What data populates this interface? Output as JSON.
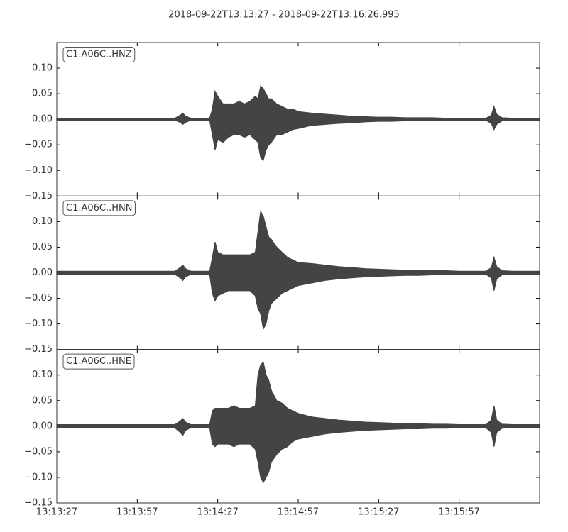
{
  "chart_data": {
    "type": "area",
    "title": "2018-09-22T13:13:27  -  2018-09-22T13:16:26.995",
    "xlim": [
      0,
      180
    ],
    "xticks": [
      {
        "value": 0,
        "label": "13:13:27"
      },
      {
        "value": 30,
        "label": "13:13:57"
      },
      {
        "value": 60,
        "label": "13:14:27"
      },
      {
        "value": 90,
        "label": "13:14:57"
      },
      {
        "value": 120,
        "label": "13:15:27"
      },
      {
        "value": 150,
        "label": "13:15:57"
      }
    ],
    "x": [
      0,
      5,
      10,
      15,
      20,
      25,
      30,
      35,
      40,
      44,
      46,
      47,
      48,
      50,
      54,
      57,
      58,
      59,
      60,
      62,
      64,
      66,
      68,
      70,
      72,
      74,
      75,
      76,
      77,
      78,
      79,
      80,
      82,
      84,
      86,
      88,
      90,
      95,
      100,
      105,
      110,
      115,
      120,
      125,
      130,
      135,
      140,
      145,
      150,
      155,
      160,
      162,
      163,
      164,
      166,
      170,
      175,
      180
    ],
    "panels": [
      {
        "label": "C1.A06C..HNZ",
        "color": "#444444",
        "ylim": [
          -0.15,
          0.15
        ],
        "yticks": [
          {
            "value": -0.15,
            "label": "−0.15"
          },
          {
            "value": -0.1,
            "label": "−0.10"
          },
          {
            "value": -0.05,
            "label": "−0.05"
          },
          {
            "value": 0,
            "label": "0.00"
          },
          {
            "value": 0.05,
            "label": "0.05"
          },
          {
            "value": 0.1,
            "label": "0.10"
          }
        ],
        "upper": [
          0.002,
          0.002,
          0.002,
          0.002,
          0.002,
          0.002,
          0.002,
          0.002,
          0.002,
          0.002,
          0.008,
          0.012,
          0.006,
          0.002,
          0.002,
          0.002,
          0.02,
          0.055,
          0.045,
          0.03,
          0.03,
          0.03,
          0.035,
          0.03,
          0.035,
          0.045,
          0.04,
          0.065,
          0.06,
          0.05,
          0.04,
          0.04,
          0.03,
          0.025,
          0.02,
          0.02,
          0.015,
          0.012,
          0.01,
          0.008,
          0.006,
          0.005,
          0.004,
          0.004,
          0.003,
          0.003,
          0.003,
          0.002,
          0.002,
          0.002,
          0.002,
          0.008,
          0.025,
          0.01,
          0.003,
          0.002,
          0.002,
          0.002
        ],
        "lower": [
          -0.002,
          -0.002,
          -0.002,
          -0.002,
          -0.002,
          -0.002,
          -0.002,
          -0.002,
          -0.002,
          -0.002,
          -0.006,
          -0.01,
          -0.006,
          -0.002,
          -0.002,
          -0.002,
          -0.03,
          -0.06,
          -0.04,
          -0.045,
          -0.035,
          -0.03,
          -0.03,
          -0.035,
          -0.03,
          -0.04,
          -0.045,
          -0.075,
          -0.08,
          -0.06,
          -0.05,
          -0.045,
          -0.03,
          -0.03,
          -0.025,
          -0.02,
          -0.018,
          -0.012,
          -0.01,
          -0.008,
          -0.007,
          -0.005,
          -0.004,
          -0.004,
          -0.003,
          -0.003,
          -0.003,
          -0.002,
          -0.002,
          -0.002,
          -0.002,
          -0.008,
          -0.02,
          -0.01,
          -0.003,
          -0.002,
          -0.002,
          -0.002
        ]
      },
      {
        "label": "C1.A06C..HNN",
        "color": "#444444",
        "ylim": [
          -0.15,
          0.15
        ],
        "yticks": [
          {
            "value": -0.15,
            "label": "−0.15"
          },
          {
            "value": -0.1,
            "label": "−0.10"
          },
          {
            "value": -0.05,
            "label": "−0.05"
          },
          {
            "value": 0,
            "label": "0.00"
          },
          {
            "value": 0.05,
            "label": "0.05"
          },
          {
            "value": 0.1,
            "label": "0.10"
          }
        ],
        "upper": [
          0.003,
          0.003,
          0.003,
          0.003,
          0.003,
          0.003,
          0.003,
          0.003,
          0.003,
          0.003,
          0.01,
          0.015,
          0.008,
          0.003,
          0.003,
          0.003,
          0.03,
          0.06,
          0.04,
          0.035,
          0.035,
          0.035,
          0.035,
          0.035,
          0.035,
          0.04,
          0.08,
          0.12,
          0.11,
          0.09,
          0.07,
          0.065,
          0.05,
          0.04,
          0.03,
          0.025,
          0.02,
          0.018,
          0.015,
          0.012,
          0.01,
          0.008,
          0.007,
          0.006,
          0.005,
          0.005,
          0.004,
          0.004,
          0.003,
          0.003,
          0.003,
          0.01,
          0.03,
          0.012,
          0.004,
          0.003,
          0.003,
          0.003
        ],
        "lower": [
          -0.003,
          -0.003,
          -0.003,
          -0.003,
          -0.003,
          -0.003,
          -0.003,
          -0.003,
          -0.003,
          -0.003,
          -0.01,
          -0.015,
          -0.008,
          -0.003,
          -0.003,
          -0.003,
          -0.04,
          -0.055,
          -0.045,
          -0.04,
          -0.035,
          -0.035,
          -0.035,
          -0.035,
          -0.035,
          -0.045,
          -0.07,
          -0.08,
          -0.11,
          -0.1,
          -0.075,
          -0.06,
          -0.05,
          -0.04,
          -0.035,
          -0.03,
          -0.025,
          -0.02,
          -0.015,
          -0.012,
          -0.01,
          -0.008,
          -0.007,
          -0.006,
          -0.005,
          -0.005,
          -0.004,
          -0.004,
          -0.003,
          -0.003,
          -0.003,
          -0.01,
          -0.035,
          -0.012,
          -0.004,
          -0.003,
          -0.003,
          -0.003
        ]
      },
      {
        "label": "C1.A06C..HNE",
        "color": "#444444",
        "ylim": [
          -0.15,
          0.15
        ],
        "yticks": [
          {
            "value": -0.15,
            "label": "−0.15"
          },
          {
            "value": -0.1,
            "label": "−0.10"
          },
          {
            "value": -0.05,
            "label": "−0.05"
          },
          {
            "value": 0,
            "label": "0.00"
          },
          {
            "value": 0.05,
            "label": "0.05"
          },
          {
            "value": 0.1,
            "label": "0.10"
          }
        ],
        "upper": [
          0.003,
          0.003,
          0.003,
          0.003,
          0.003,
          0.003,
          0.003,
          0.003,
          0.003,
          0.003,
          0.01,
          0.015,
          0.008,
          0.003,
          0.003,
          0.003,
          0.03,
          0.035,
          0.035,
          0.035,
          0.035,
          0.04,
          0.035,
          0.035,
          0.035,
          0.04,
          0.1,
          0.12,
          0.125,
          0.1,
          0.09,
          0.07,
          0.05,
          0.045,
          0.035,
          0.03,
          0.025,
          0.018,
          0.015,
          0.012,
          0.01,
          0.008,
          0.007,
          0.006,
          0.005,
          0.005,
          0.004,
          0.004,
          0.003,
          0.003,
          0.003,
          0.012,
          0.04,
          0.012,
          0.004,
          0.003,
          0.003,
          0.003
        ],
        "lower": [
          -0.003,
          -0.003,
          -0.003,
          -0.003,
          -0.003,
          -0.003,
          -0.003,
          -0.003,
          -0.003,
          -0.003,
          -0.012,
          -0.018,
          -0.008,
          -0.003,
          -0.003,
          -0.003,
          -0.035,
          -0.04,
          -0.035,
          -0.035,
          -0.035,
          -0.04,
          -0.035,
          -0.035,
          -0.035,
          -0.045,
          -0.07,
          -0.1,
          -0.11,
          -0.1,
          -0.09,
          -0.07,
          -0.055,
          -0.045,
          -0.04,
          -0.03,
          -0.025,
          -0.02,
          -0.015,
          -0.012,
          -0.01,
          -0.008,
          -0.007,
          -0.006,
          -0.005,
          -0.005,
          -0.004,
          -0.004,
          -0.003,
          -0.003,
          -0.003,
          -0.012,
          -0.04,
          -0.012,
          -0.004,
          -0.003,
          -0.003,
          -0.003
        ]
      }
    ]
  }
}
